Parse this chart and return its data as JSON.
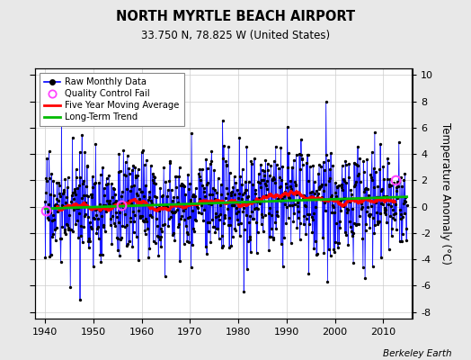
{
  "title": "NORTH MYRTLE BEACH AIRPORT",
  "subtitle": "33.750 N, 78.825 W (United States)",
  "ylabel": "Temperature Anomaly (°C)",
  "credit": "Berkeley Earth",
  "xlim": [
    1938,
    2016
  ],
  "ylim": [
    -8.5,
    10.5
  ],
  "yticks": [
    -8,
    -6,
    -4,
    -2,
    0,
    2,
    4,
    6,
    8,
    10
  ],
  "xticks": [
    1940,
    1950,
    1960,
    1970,
    1980,
    1990,
    2000,
    2010
  ],
  "bg_color": "#e8e8e8",
  "plot_bg_color": "#ffffff",
  "raw_color": "#0000ff",
  "moving_avg_color": "#ff0000",
  "trend_color": "#00bb00",
  "qc_fail_color": "#ff44ff",
  "seed": 17,
  "n_years": 75,
  "start_year": 1940,
  "trend_slope": 0.012,
  "trend_intercept": -0.15,
  "qc_years": [
    1940.25,
    1955.8,
    2012.5
  ],
  "qc_vals": [
    -0.3,
    0.1,
    2.0
  ]
}
